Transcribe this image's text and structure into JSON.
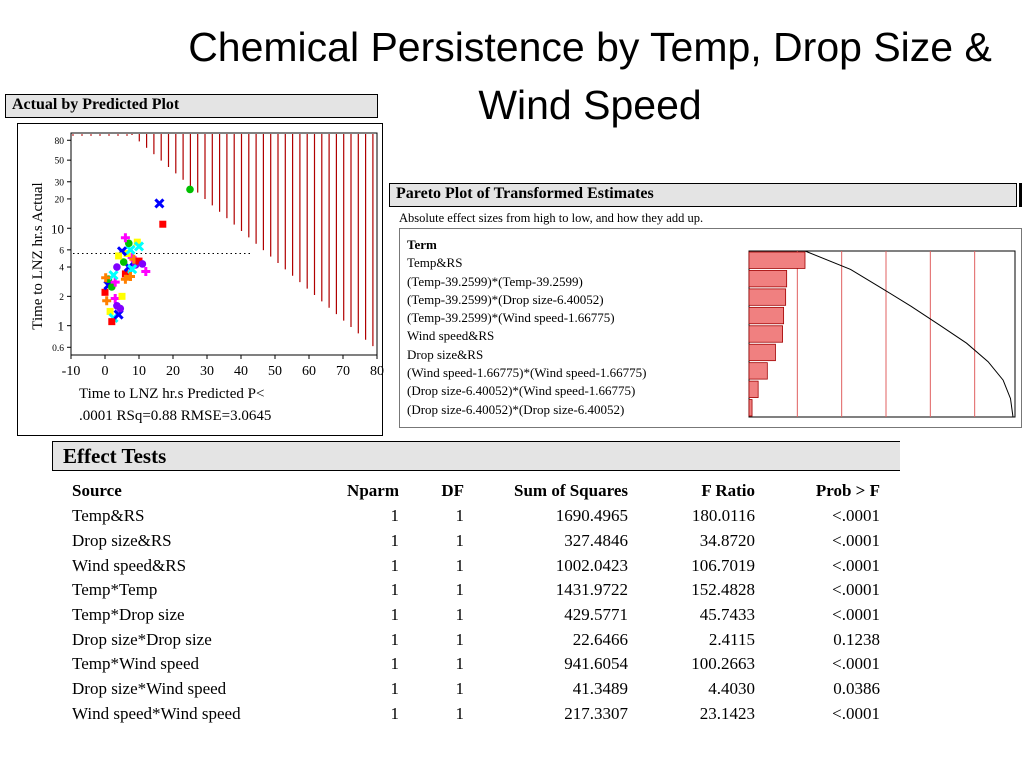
{
  "title": "Chemical Persistence by Temp, Drop Size & Wind Speed",
  "actual_by_predicted": {
    "header": "Actual by Predicted Plot",
    "ylabel": "Time to LNZ hr.s Actual",
    "xlabel_line1": "Time to LNZ hr.s Predicted P<",
    "xlabel_line2": ".0001 RSq=0.88 RMSE=3.0645"
  },
  "pareto": {
    "header": "Pareto Plot of Transformed Estimates",
    "description": "Absolute effect sizes from high to low, and how they add up.",
    "term_header": "Term"
  },
  "effect_tests": {
    "header": "Effect Tests",
    "columns": [
      "Source",
      "Nparm",
      "DF",
      "Sum of Squares",
      "F Ratio",
      "Prob > F"
    ],
    "rows": [
      [
        "Temp&RS",
        "1",
        "1",
        "1690.4965",
        "180.0116",
        "<.0001"
      ],
      [
        "Drop size&RS",
        "1",
        "1",
        "327.4846",
        "34.8720",
        "<.0001"
      ],
      [
        "Wind speed&RS",
        "1",
        "1",
        "1002.0423",
        "106.7019",
        "<.0001"
      ],
      [
        "Temp*Temp",
        "1",
        "1",
        "1431.9722",
        "152.4828",
        "<.0001"
      ],
      [
        "Temp*Drop size",
        "1",
        "1",
        "429.5771",
        "45.7433",
        "<.0001"
      ],
      [
        "Drop size*Drop size",
        "1",
        "1",
        "22.6466",
        "2.4115",
        "0.1238"
      ],
      [
        "Temp*Wind speed",
        "1",
        "1",
        "941.6054",
        "100.2663",
        "<.0001"
      ],
      [
        "Drop size*Wind speed",
        "1",
        "1",
        "41.3489",
        "4.4030",
        "0.0386"
      ],
      [
        "Wind speed*Wind speed",
        "1",
        "1",
        "217.3307",
        "23.1423",
        "<.0001"
      ]
    ]
  },
  "chart_data": [
    {
      "type": "scatter",
      "title": "Actual by Predicted Plot",
      "xlabel": "Time to LNZ hr.s Predicted P<",
      "ylabel": "Time to LNZ hr.s Actual",
      "x_ticks": [
        "-10",
        "0",
        "10",
        "20",
        "30",
        "40",
        "50",
        "60",
        "70",
        "80"
      ],
      "y_ticks": [
        "0.6",
        "1",
        "2",
        "4",
        "6",
        "10",
        "20",
        "30",
        "50",
        "80"
      ],
      "xlim": [
        -10,
        80
      ],
      "ylim": [
        0.5,
        95
      ],
      "y_scale": "log",
      "mean_line": 5.5,
      "colors": [
        "#ff0000",
        "#0000ff",
        "#00c000",
        "#ff00ff",
        "#ffff00",
        "#00ffff",
        "#8000ff",
        "#ff8000"
      ],
      "points": [
        [
          0,
          2.2
        ],
        [
          1,
          2.6
        ],
        [
          2,
          2.5
        ],
        [
          3,
          1.9
        ],
        [
          1.5,
          1.4
        ],
        [
          2.5,
          1.2
        ],
        [
          3.5,
          1.6
        ],
        [
          0.5,
          1.8
        ],
        [
          2,
          1.1
        ],
        [
          4,
          1.3
        ],
        [
          1,
          3.0
        ],
        [
          3,
          2.8
        ],
        [
          5,
          2.0
        ],
        [
          2.5,
          3.3
        ],
        [
          4.5,
          1.5
        ],
        [
          0.2,
          3.1
        ],
        [
          6,
          3.4
        ],
        [
          7,
          4.0
        ],
        [
          5.5,
          4.5
        ],
        [
          8,
          5.0
        ],
        [
          6.5,
          5.5
        ],
        [
          7.5,
          6.0
        ],
        [
          9,
          4.2
        ],
        [
          8.5,
          4.8
        ],
        [
          10,
          4.6
        ],
        [
          5,
          5.8
        ],
        [
          7,
          7.0
        ],
        [
          6,
          8.0
        ],
        [
          9.5,
          7.2
        ],
        [
          8,
          3.8
        ],
        [
          11,
          4.3
        ],
        [
          6,
          3.0
        ],
        [
          17,
          11.0
        ],
        [
          16,
          18.0
        ],
        [
          25,
          25.0
        ],
        [
          12,
          3.6
        ],
        [
          4,
          5.2
        ],
        [
          10,
          6.5
        ],
        [
          3.5,
          4.0
        ],
        [
          7.5,
          3.2
        ]
      ]
    },
    {
      "type": "bar",
      "title": "Pareto Plot of Transformed Estimates",
      "orientation": "horizontal",
      "categories": [
        "Temp&RS",
        "(Temp-39.2599)*(Temp-39.2599)",
        "(Temp-39.2599)*(Drop size-6.40052)",
        "(Temp-39.2599)*(Wind speed-1.66775)",
        "Wind speed&RS",
        "Drop size&RS",
        "(Wind speed-1.66775)*(Wind speed-1.66775)",
        "(Drop size-6.40052)*(Wind speed-1.66775)",
        "(Drop size-6.40052)*(Drop size-6.40052)"
      ],
      "values": [
        55,
        37,
        36,
        34,
        33,
        26,
        18,
        9,
        3
      ],
      "cumulative_curve": true,
      "reference_lines": 5
    }
  ]
}
